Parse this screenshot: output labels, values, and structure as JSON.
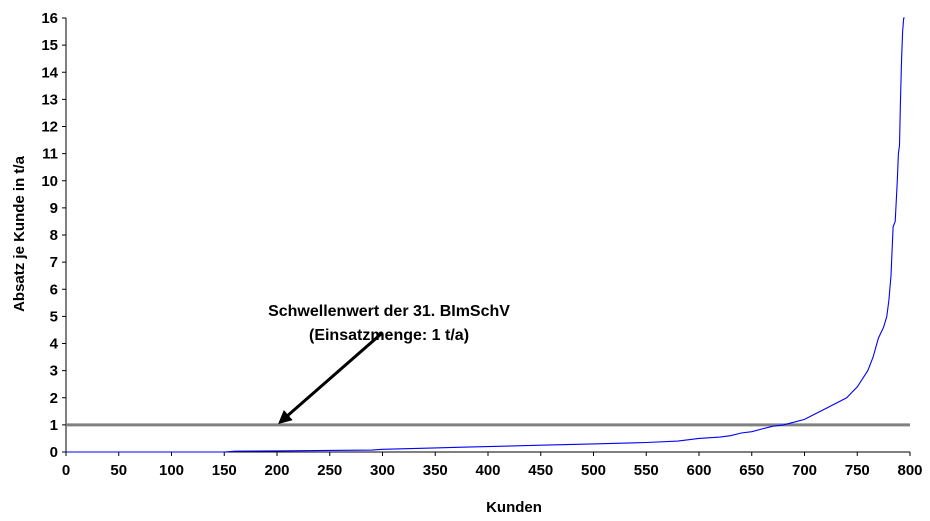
{
  "chart_data": {
    "type": "line",
    "title": "",
    "xlabel": "Kunden",
    "ylabel": "Absatz je Kunde in t/a",
    "xlim": [
      0,
      800
    ],
    "ylim": [
      0,
      16
    ],
    "x_ticks": [
      0,
      50,
      100,
      150,
      200,
      250,
      300,
      350,
      400,
      450,
      500,
      550,
      600,
      650,
      700,
      750,
      800
    ],
    "y_ticks": [
      0,
      1,
      2,
      3,
      4,
      5,
      6,
      7,
      8,
      9,
      10,
      11,
      12,
      13,
      14,
      15,
      16
    ],
    "grid": false,
    "threshold": {
      "value": 1,
      "color": "#808080"
    },
    "annotation": {
      "line1": "Schwellenwert der 31. BImSchV",
      "line2": "(Einsatzmenge: 1 t/a)",
      "arrow_tail": [
        300,
        4.4
      ],
      "arrow_head": [
        203,
        1.1
      ]
    },
    "series": [
      {
        "color": "#0000ff",
        "x": [
          0,
          100,
          150,
          160,
          200,
          250,
          290,
          300,
          350,
          380,
          400,
          450,
          500,
          550,
          580,
          600,
          620,
          630,
          640,
          650,
          660,
          670,
          680,
          690,
          700,
          710,
          720,
          730,
          740,
          745,
          750,
          755,
          760,
          765,
          770,
          775,
          778,
          780,
          782,
          784,
          786,
          788,
          789,
          790,
          791,
          792,
          793,
          794,
          795
        ],
        "y": [
          0,
          0,
          0,
          0.03,
          0.04,
          0.06,
          0.07,
          0.1,
          0.15,
          0.18,
          0.2,
          0.25,
          0.3,
          0.35,
          0.4,
          0.5,
          0.55,
          0.6,
          0.7,
          0.75,
          0.85,
          0.95,
          1.0,
          1.1,
          1.2,
          1.4,
          1.6,
          1.8,
          2.0,
          2.2,
          2.4,
          2.7,
          3.0,
          3.5,
          4.2,
          4.6,
          5.0,
          5.6,
          6.5,
          8.3,
          8.5,
          10.0,
          11.0,
          11.3,
          13.0,
          14.5,
          15.5,
          16.0,
          16.0
        ]
      }
    ]
  }
}
